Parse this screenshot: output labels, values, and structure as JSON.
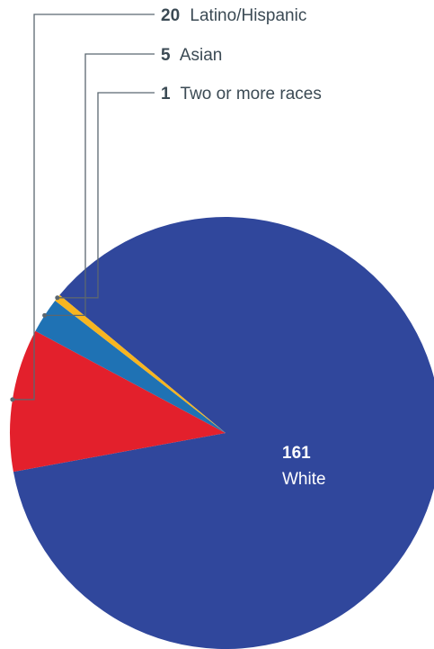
{
  "chart_data": {
    "type": "pie",
    "title": "",
    "slices": [
      {
        "name": "White",
        "value": 161,
        "color": "#30479c"
      },
      {
        "name": "Latino/Hispanic",
        "value": 20,
        "color": "#e3202c"
      },
      {
        "name": "Asian",
        "value": 5,
        "color": "#1f72b4"
      },
      {
        "name": "Two or more races",
        "value": 1,
        "color": "#f7b520"
      }
    ],
    "label_text_color": "#3b4a54",
    "leader_line_color": "#5b6770"
  },
  "labels": {
    "white_value": "161",
    "white_name": "White",
    "latino_value": "20",
    "latino_name": "Latino/Hispanic",
    "asian_value": "5",
    "asian_name": "Asian",
    "multi_value": "1",
    "multi_name": "Two or more races"
  }
}
